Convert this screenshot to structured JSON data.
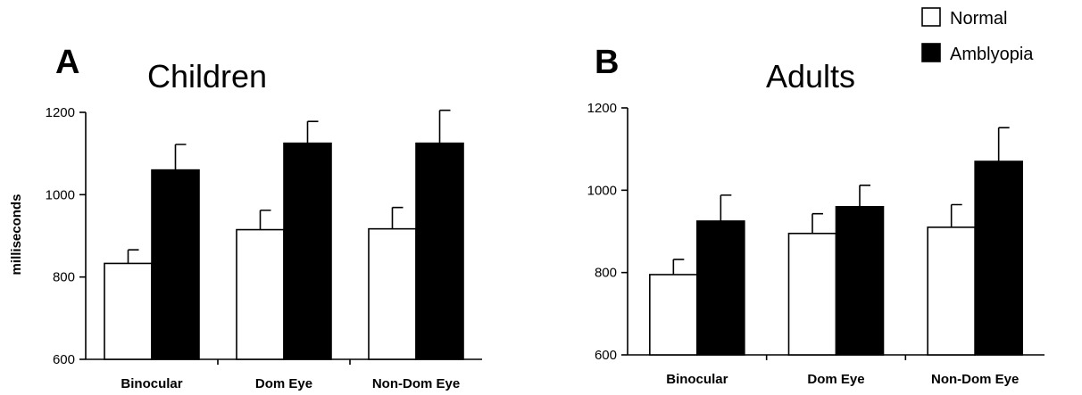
{
  "legend": {
    "items": [
      {
        "label": "Normal",
        "color": "#ffffff"
      },
      {
        "label": "Amblyopia",
        "color": "#000000"
      }
    ]
  },
  "chart_data": [
    {
      "type": "bar",
      "panel": "A",
      "title": "Children",
      "ylabel": "milliseconds",
      "xlabel": "",
      "ylim": [
        600,
        1200
      ],
      "yticks": [
        600,
        800,
        1000,
        1200
      ],
      "grid": false,
      "categories": [
        "Binocular",
        "Dom Eye",
        "Non-Dom Eye"
      ],
      "series": [
        {
          "name": "Normal",
          "color": "#ffffff",
          "values": [
            833,
            915,
            917
          ],
          "errors": [
            33,
            47,
            52
          ]
        },
        {
          "name": "Amblyopia",
          "color": "#000000",
          "values": [
            1060,
            1125,
            1125
          ],
          "errors": [
            62,
            53,
            80
          ]
        }
      ]
    },
    {
      "type": "bar",
      "panel": "B",
      "title": "Adults",
      "ylabel": "",
      "xlabel": "",
      "ylim": [
        600,
        1200
      ],
      "yticks": [
        600,
        800,
        1000,
        1200
      ],
      "grid": false,
      "categories": [
        "Binocular",
        "Dom Eye",
        "Non-Dom Eye"
      ],
      "series": [
        {
          "name": "Normal",
          "color": "#ffffff",
          "values": [
            795,
            895,
            910
          ],
          "errors": [
            37,
            48,
            55
          ]
        },
        {
          "name": "Amblyopia",
          "color": "#000000",
          "values": [
            925,
            960,
            1070
          ],
          "errors": [
            63,
            52,
            82
          ]
        }
      ]
    }
  ]
}
